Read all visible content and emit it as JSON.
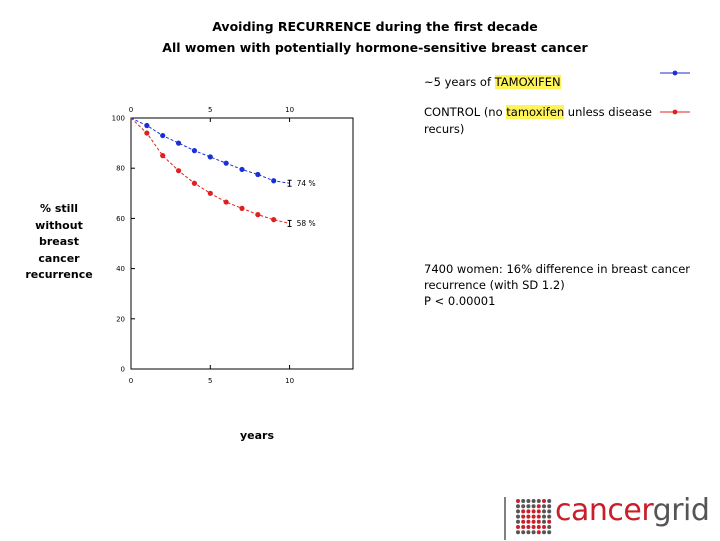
{
  "slide": {
    "title_line1": "Avoiding RECURRENCE during the first decade",
    "title_line2": "All women with potentially hormone-sensitive breast cancer"
  },
  "legend": {
    "tamoxifen_prefix": "~5 years of ",
    "tamoxifen_highlight": "TAMOXIFEN",
    "control_prefix": "CONTROL (no ",
    "control_highlight": "tamoxifen",
    "control_suffix": " unless disease recurs)"
  },
  "stats": {
    "line1": "7400 women: 16% difference in breast cancer recurrence (with SD 1.2)",
    "line2": "P < 0.00001"
  },
  "axis": {
    "ylabel_lines": [
      "% still",
      "without",
      "breast",
      "cancer",
      "recurrence"
    ],
    "xlabel": "years"
  },
  "logo": {
    "part1": "cancer",
    "part2": "grid",
    "colors": {
      "red": "#c8202a",
      "gray": "#555555"
    }
  },
  "colors": {
    "tamoxifen": "#1a2fd6",
    "control": "#e02020"
  },
  "chart_data": {
    "type": "line",
    "title": "Avoiding RECURRENCE during the first decade",
    "xlabel": "years",
    "ylabel": "% still without breast cancer recurrence",
    "xlim": [
      0,
      14
    ],
    "ylim": [
      0,
      100
    ],
    "xticks": [
      0,
      5,
      10
    ],
    "xtick_labels": [
      "0",
      "5",
      "10"
    ],
    "yticks": [
      0,
      20,
      40,
      60,
      80,
      100
    ],
    "ytick_labels": [
      "0",
      "20",
      "40",
      "60",
      "80",
      "100"
    ],
    "x": [
      0,
      1,
      2,
      3,
      4,
      5,
      6,
      7,
      8,
      9,
      10
    ],
    "series": [
      {
        "name": "~5 years of TAMOXIFEN",
        "color": "#1a2fd6",
        "values": [
          100,
          97,
          93,
          90,
          87,
          84.5,
          82,
          79.5,
          77.5,
          75,
          74
        ],
        "end_label": "74 %"
      },
      {
        "name": "CONTROL (no tamoxifen unless disease recurs)",
        "color": "#e02020",
        "values": [
          100,
          94,
          85,
          79,
          74,
          70,
          66.5,
          64,
          61.5,
          59.5,
          58
        ],
        "end_label": "58 %"
      }
    ]
  }
}
